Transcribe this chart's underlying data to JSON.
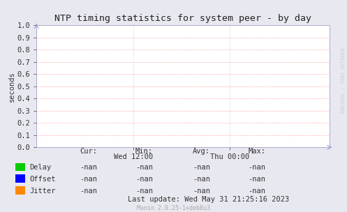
{
  "title": "NTP timing statistics for system peer - by day",
  "ylabel": "seconds",
  "ylim": [
    0.0,
    1.0
  ],
  "yticks": [
    0.0,
    0.1,
    0.2,
    0.3,
    0.4,
    0.5,
    0.6,
    0.7,
    0.8,
    0.9,
    1.0
  ],
  "xtick_labels": [
    "Wed 12:00",
    "Thu 00:00"
  ],
  "xtick_positions": [
    0.33,
    0.66
  ],
  "bg_color": "#e8e8f0",
  "plot_bg_color": "#ffffff",
  "grid_color": "#ff9999",
  "grid_color2": "#ccccdd",
  "border_color": "#aaaacc",
  "title_color": "#222222",
  "text_color": "#333333",
  "muted_color": "#aaaaaa",
  "watermark_color": "#ccccdd",
  "legend_items": [
    {
      "label": "Delay",
      "color": "#00cc00"
    },
    {
      "label": "Offset",
      "color": "#0000ff"
    },
    {
      "label": "Jitter",
      "color": "#ff8800"
    }
  ],
  "stats_header": [
    "Cur:",
    "Min:",
    "Avg:",
    "Max:"
  ],
  "stats_data": [
    [
      "-nan",
      "-nan",
      "-nan",
      "-nan"
    ],
    [
      "-nan",
      "-nan",
      "-nan",
      "-nan"
    ],
    [
      "-nan",
      "-nan",
      "-nan",
      "-nan"
    ]
  ],
  "last_update": "Last update: Wed May 31 21:25:16 2023",
  "munin_version": "Munin 2.0.25-1+deb8u3",
  "watermark": "RRDTOOL / TOBI OETIKER",
  "font_size": 7.5,
  "title_font_size": 9.5
}
